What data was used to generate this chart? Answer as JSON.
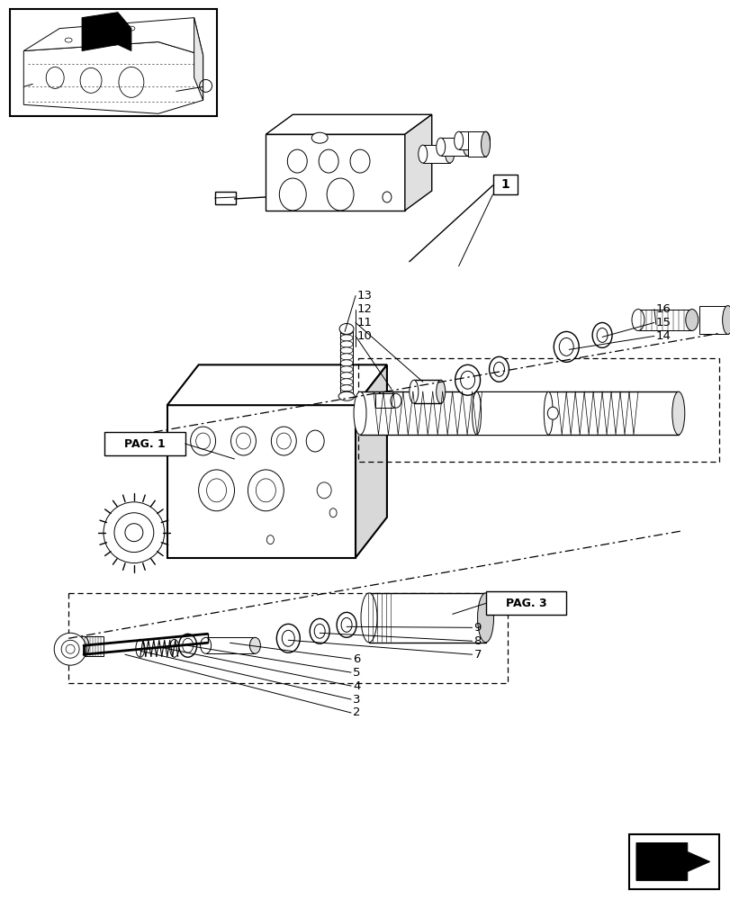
{
  "bg_color": "#ffffff",
  "line_color": "#000000",
  "fig_width": 8.12,
  "fig_height": 10.0,
  "dpi": 100,
  "lw_thin": 0.7,
  "lw_med": 1.0,
  "lw_thick": 1.5
}
